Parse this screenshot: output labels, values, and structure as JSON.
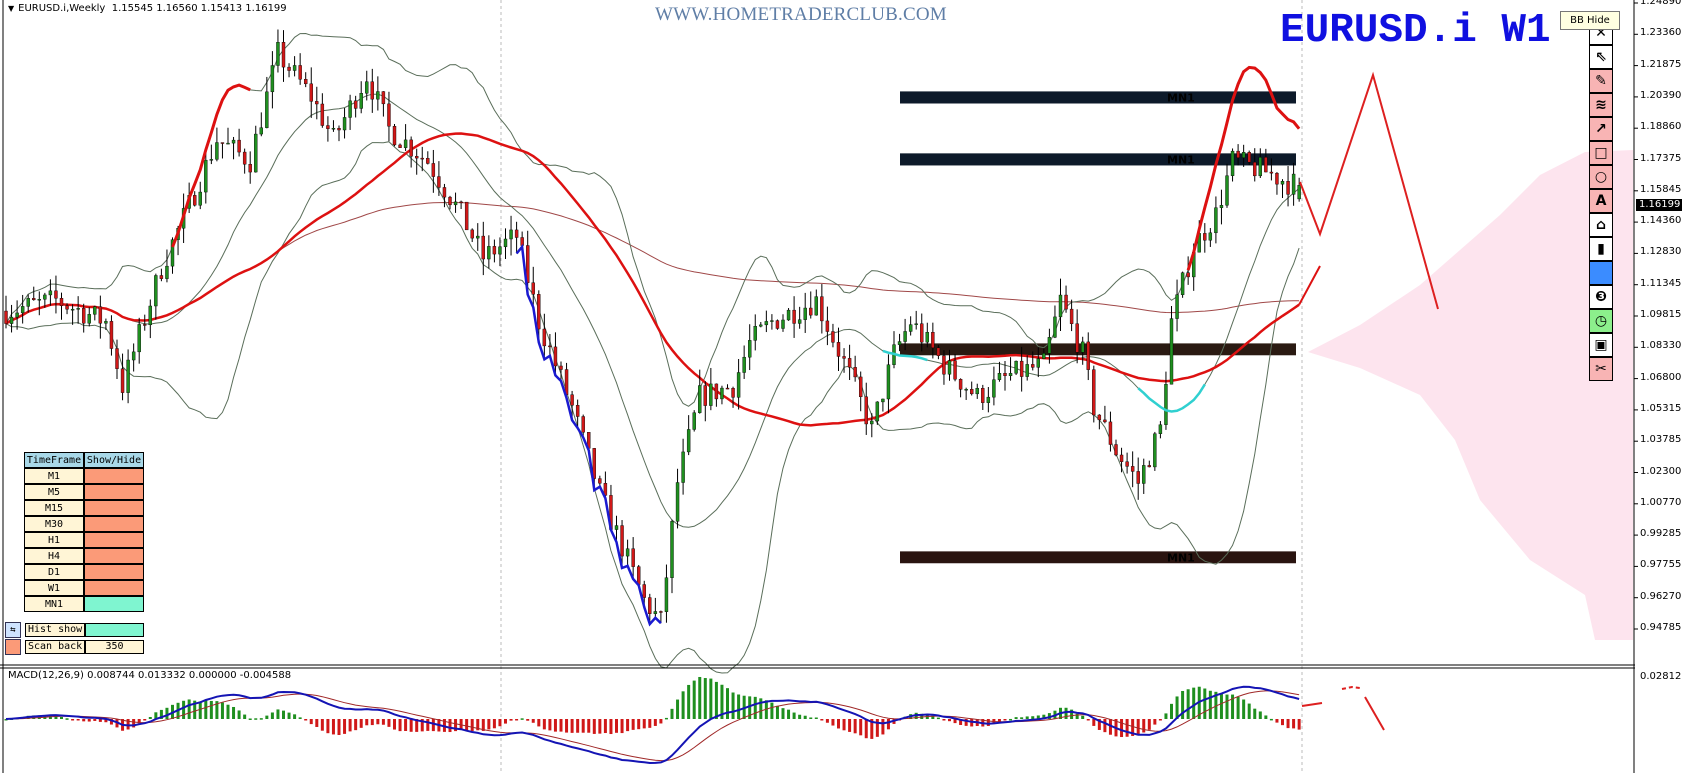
{
  "header": {
    "symbol_info": "EURUSD.i,Weekly",
    "ohlc": "1.15545 1.16560 1.15413 1.16199"
  },
  "watermark": "WWW.HOMETRADERCLUB.COM",
  "big_title": "EURUSD.i W1",
  "tooltip": "BB Hide",
  "toolbar": [
    {
      "icon": "close-icon",
      "glyph": "✕",
      "bg": "#ffffff"
    },
    {
      "icon": "cursor-icon",
      "glyph": "⇖",
      "bg": "#ffffff"
    },
    {
      "icon": "pencil-icon",
      "glyph": "✎",
      "bg": "#f8b4b4"
    },
    {
      "icon": "wave-lines-icon",
      "glyph": "≋",
      "bg": "#f8b4b4"
    },
    {
      "icon": "arrow-icon",
      "glyph": "↗",
      "bg": "#f8b4b4"
    },
    {
      "icon": "rectangle-icon",
      "glyph": "□",
      "bg": "#f8b4b4"
    },
    {
      "icon": "circle-icon",
      "glyph": "○",
      "bg": "#f8b4b4"
    },
    {
      "icon": "text-icon",
      "glyph": "A",
      "bg": "#f8b4b4"
    },
    {
      "icon": "pointer-label-icon",
      "glyph": "⌂",
      "bg": "#ffffff"
    },
    {
      "icon": "trash-icon",
      "glyph": "▮",
      "bg": "#ffffff"
    },
    {
      "icon": "color-swatch-icon",
      "glyph": "",
      "bg": "#3b8cff"
    },
    {
      "icon": "number-three-icon",
      "glyph": "❸",
      "bg": "#ffffff"
    },
    {
      "icon": "clock-icon",
      "glyph": "◷",
      "bg": "#8cef8c"
    },
    {
      "icon": "save-icon",
      "glyph": "▣",
      "bg": "#ffffff"
    },
    {
      "icon": "scissors-icon",
      "glyph": "✂",
      "bg": "#f8b4b4"
    }
  ],
  "price_axis": [
    "1.24890",
    "1.23360",
    "1.21875",
    "1.20390",
    "1.18860",
    "1.17375",
    "1.15845",
    "1.14360",
    "1.12830",
    "1.11345",
    "1.09815",
    "1.08330",
    "1.06800",
    "1.05315",
    "1.03785",
    "1.02300",
    "1.00770",
    "0.99285",
    "0.97755",
    "0.96270",
    "0.94785"
  ],
  "current_price": "1.16199",
  "zones": [
    {
      "label": "MN1",
      "top": 1.207,
      "bottom": 1.2012,
      "color": "#0d1a2a"
    },
    {
      "label": "MN1",
      "top": 1.1773,
      "bottom": 1.1715,
      "color": "#0d1a2a"
    },
    {
      "label": "",
      "top": 1.0862,
      "bottom": 1.0805,
      "color": "#2a1a12"
    },
    {
      "label": "MN1",
      "top": 0.9865,
      "bottom": 0.9808,
      "color": "#2a1410"
    }
  ],
  "timeframe_panel": {
    "headers": [
      "TimeFrame",
      "Show/Hide"
    ],
    "rows": [
      {
        "tf": "M1",
        "on": false
      },
      {
        "tf": "M5",
        "on": false
      },
      {
        "tf": "M15",
        "on": false
      },
      {
        "tf": "M30",
        "on": false
      },
      {
        "tf": "H1",
        "on": false
      },
      {
        "tf": "H4",
        "on": false
      },
      {
        "tf": "D1",
        "on": false
      },
      {
        "tf": "W1",
        "on": false
      },
      {
        "tf": "MN1",
        "on": true
      }
    ],
    "hist_show_label": "Hist show",
    "scan_back_label": "Scan back",
    "scan_back_value": "350"
  },
  "macd": {
    "label": "MACD(12,26,9) 0.008744 0.013332 0.000000 -0.004588",
    "axis_max": "0.028123"
  },
  "colors": {
    "bull": "#1f8f1f",
    "bear": "#d01818",
    "ma_fast": "#dd1111",
    "ma_slow": "#a04848",
    "bands": "#5a6e5a",
    "macd": "#1414b4",
    "signal": "#a02828",
    "profile": "#fde4ee",
    "accent_title": "#1010e0"
  },
  "chart_data": {
    "type": "candlestick",
    "symbol": "EURUSD.i",
    "timeframe": "Weekly",
    "last_bar": {
      "open": 1.15545,
      "high": 1.1656,
      "low": 1.15413,
      "close": 1.16199
    },
    "ylim": [
      0.94785,
      1.2489
    ],
    "close_path": [
      [
        0,
        1.1017
      ],
      [
        9,
        1.1069
      ],
      [
        18,
        1.0966
      ],
      [
        21,
        1.0658
      ],
      [
        28,
        1.1223
      ],
      [
        34,
        1.1583
      ],
      [
        38,
        1.184
      ],
      [
        44,
        1.1737
      ],
      [
        49,
        1.2251
      ],
      [
        55,
        1.2045
      ],
      [
        59,
        1.184
      ],
      [
        65,
        1.2148
      ],
      [
        69,
        1.1891
      ],
      [
        76,
        1.1737
      ],
      [
        82,
        1.148
      ],
      [
        86,
        1.1274
      ],
      [
        92,
        1.1377
      ],
      [
        96,
        1.0966
      ],
      [
        102,
        1.0555
      ],
      [
        107,
        1.0144
      ],
      [
        115,
        0.963
      ],
      [
        118,
        0.9527
      ],
      [
        121,
        1.0195
      ],
      [
        125,
        1.0606
      ],
      [
        131,
        1.0658
      ],
      [
        134,
        1.0863
      ],
      [
        138,
        1.0966
      ],
      [
        146,
        1.1069
      ],
      [
        152,
        1.0709
      ],
      [
        156,
        1.0452
      ],
      [
        160,
        1.0812
      ],
      [
        163,
        1.0966
      ],
      [
        169,
        1.076
      ],
      [
        175,
        1.0606
      ],
      [
        181,
        1.0709
      ],
      [
        187,
        1.076
      ],
      [
        190,
        1.1069
      ],
      [
        194,
        1.0812
      ],
      [
        196,
        1.0555
      ],
      [
        200,
        1.0349
      ],
      [
        204,
        1.0195
      ],
      [
        208,
        1.0452
      ],
      [
        210,
        1.0966
      ],
      [
        214,
        1.1326
      ],
      [
        218,
        1.148
      ],
      [
        221,
        1.1737
      ],
      [
        227,
        1.1686
      ],
      [
        231,
        1.1634
      ],
      [
        233,
        1.16199
      ]
    ]
  }
}
